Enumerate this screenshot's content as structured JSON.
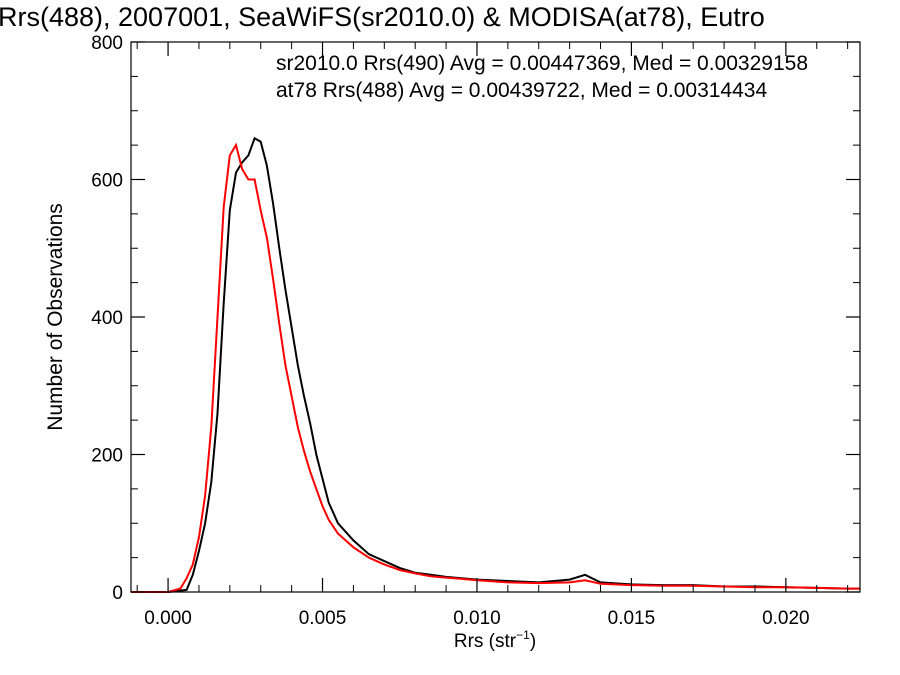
{
  "chart_data": {
    "type": "line",
    "title": "Rrs(488), 2007001, SeaWiFS(sr2010.0) & MODISA(at78), Eutro",
    "xlabel": "Rrs (str",
    "xlabel_sup": "−1",
    "xlabel_end": ")",
    "ylabel": "Number of Observations",
    "xlim": [
      -0.0012,
      0.0224
    ],
    "ylim": [
      0,
      800
    ],
    "xticks": [
      0.0,
      0.005,
      0.01,
      0.015,
      0.02
    ],
    "xtick_labels": [
      "0.000",
      "0.005",
      "0.010",
      "0.015",
      "0.020"
    ],
    "yticks": [
      0,
      200,
      400,
      600,
      800
    ],
    "ytick_labels": [
      "0",
      "200",
      "400",
      "600",
      "800"
    ],
    "legend": [
      {
        "text": "sr2010.0 Rrs(490) Avg = 0.00447369, Med = 0.00329158",
        "color": "#000000"
      },
      {
        "text": "at78 Rrs(488) Avg = 0.00439722, Med = 0.00314434",
        "color": "#ff0000"
      }
    ],
    "legend_position": "top-right",
    "series": [
      {
        "color": "#000000",
        "x": [
          -0.0012,
          0.0,
          0.0006,
          0.0008,
          0.001,
          0.0012,
          0.0014,
          0.0016,
          0.0018,
          0.002,
          0.0022,
          0.0024,
          0.0026,
          0.0028,
          0.003,
          0.0032,
          0.0034,
          0.0036,
          0.0038,
          0.004,
          0.0042,
          0.0044,
          0.0046,
          0.0048,
          0.005,
          0.0052,
          0.0055,
          0.006,
          0.0065,
          0.007,
          0.0075,
          0.008,
          0.0085,
          0.009,
          0.0095,
          0.01,
          0.011,
          0.012,
          0.013,
          0.0135,
          0.014,
          0.015,
          0.016,
          0.017,
          0.018,
          0.019,
          0.02,
          0.021,
          0.022,
          0.0224
        ],
        "y": [
          0,
          0,
          3,
          25,
          60,
          100,
          160,
          260,
          420,
          555,
          610,
          625,
          635,
          660,
          655,
          620,
          565,
          500,
          440,
          385,
          330,
          285,
          245,
          200,
          165,
          130,
          100,
          75,
          55,
          45,
          35,
          28,
          25,
          22,
          20,
          18,
          16,
          14,
          18,
          25,
          14,
          11,
          10,
          10,
          8,
          8,
          7,
          6,
          5,
          5
        ]
      },
      {
        "color": "#ff0000",
        "x": [
          -0.0012,
          0.0,
          0.0004,
          0.0006,
          0.0008,
          0.001,
          0.0012,
          0.0014,
          0.0016,
          0.0018,
          0.002,
          0.0022,
          0.0024,
          0.0026,
          0.0028,
          0.003,
          0.0032,
          0.0034,
          0.0036,
          0.0038,
          0.004,
          0.0042,
          0.0044,
          0.0046,
          0.0048,
          0.005,
          0.0052,
          0.0055,
          0.006,
          0.0065,
          0.007,
          0.0075,
          0.008,
          0.0085,
          0.009,
          0.0095,
          0.01,
          0.011,
          0.012,
          0.013,
          0.0135,
          0.014,
          0.015,
          0.016,
          0.017,
          0.018,
          0.019,
          0.02,
          0.021,
          0.022,
          0.0224
        ],
        "y": [
          0,
          0,
          5,
          20,
          40,
          80,
          140,
          240,
          400,
          560,
          635,
          650,
          615,
          600,
          600,
          555,
          515,
          455,
          390,
          330,
          285,
          240,
          205,
          175,
          150,
          125,
          105,
          85,
          65,
          50,
          40,
          32,
          27,
          23,
          21,
          19,
          17,
          14,
          13,
          14,
          17,
          12,
          10,
          9,
          9,
          8,
          7,
          7,
          6,
          5,
          5
        ]
      }
    ]
  }
}
